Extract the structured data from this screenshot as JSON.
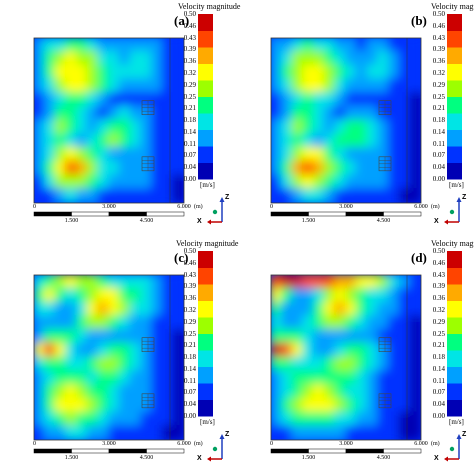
{
  "colors": {
    "colormap": [
      "#0000b4",
      "#0033ff",
      "#00a0ff",
      "#00e5e5",
      "#00ff80",
      "#9dff00",
      "#ffff00",
      "#ffaa00",
      "#ff4400",
      "#cc0000"
    ],
    "frame": "#333333",
    "axis_z": "#1f3fbf",
    "axis_x": "#c00000",
    "axis_dot": "#00a060"
  },
  "chart_data": [
    {
      "type": "heatmap",
      "panel_label": "(a)",
      "colorbar_title": "Velocity magnitude",
      "colorbar_ticks": [
        "0.50",
        "0.46",
        "0.43",
        "0.39",
        "0.36",
        "0.32",
        "0.29",
        "0.25",
        "0.21",
        "0.18",
        "0.14",
        "0.11",
        "0.07",
        "0.04",
        "0.00"
      ],
      "colorbar_unit": "[m/s]",
      "colorbar_range": [
        0,
        0.5
      ],
      "scale_bar_top": [
        "0",
        "3.000",
        "6.000",
        "(m)"
      ],
      "scale_bar_bottom": [
        "1.500",
        "4.500"
      ],
      "axis_labels": {
        "vertical": "Z",
        "horizontal": "X"
      },
      "field": {
        "rows": 12,
        "cols": 14,
        "values": [
          [
            0.12,
            0.15,
            0.18,
            0.21,
            0.2,
            0.17,
            0.14,
            0.12,
            0.1,
            0.12,
            0.14,
            0.1,
            0.08,
            0.06
          ],
          [
            0.14,
            0.2,
            0.26,
            0.3,
            0.29,
            0.25,
            0.19,
            0.15,
            0.13,
            0.15,
            0.16,
            0.11,
            0.08,
            0.06
          ],
          [
            0.13,
            0.22,
            0.3,
            0.34,
            0.33,
            0.28,
            0.22,
            0.17,
            0.15,
            0.18,
            0.17,
            0.12,
            0.08,
            0.06
          ],
          [
            0.11,
            0.18,
            0.27,
            0.32,
            0.31,
            0.26,
            0.2,
            0.15,
            0.12,
            0.13,
            0.13,
            0.1,
            0.07,
            0.05
          ],
          [
            0.08,
            0.12,
            0.17,
            0.21,
            0.2,
            0.16,
            0.11,
            0.09,
            0.07,
            0.08,
            0.09,
            0.07,
            0.06,
            0.05
          ],
          [
            0.09,
            0.14,
            0.21,
            0.24,
            0.19,
            0.13,
            0.09,
            0.12,
            0.15,
            0.13,
            0.1,
            0.08,
            0.06,
            0.05
          ],
          [
            0.12,
            0.19,
            0.27,
            0.23,
            0.16,
            0.12,
            0.16,
            0.22,
            0.24,
            0.19,
            0.14,
            0.09,
            0.06,
            0.05
          ],
          [
            0.1,
            0.16,
            0.2,
            0.17,
            0.13,
            0.16,
            0.22,
            0.25,
            0.22,
            0.16,
            0.12,
            0.08,
            0.06,
            0.05
          ],
          [
            0.1,
            0.17,
            0.26,
            0.31,
            0.28,
            0.21,
            0.16,
            0.13,
            0.12,
            0.13,
            0.12,
            0.08,
            0.06,
            0.05
          ],
          [
            0.11,
            0.21,
            0.34,
            0.4,
            0.35,
            0.26,
            0.19,
            0.15,
            0.13,
            0.14,
            0.13,
            0.09,
            0.06,
            0.05
          ],
          [
            0.09,
            0.16,
            0.25,
            0.29,
            0.26,
            0.2,
            0.15,
            0.12,
            0.1,
            0.11,
            0.1,
            0.07,
            0.05,
            0.04
          ],
          [
            0.06,
            0.09,
            0.13,
            0.15,
            0.14,
            0.11,
            0.09,
            0.08,
            0.07,
            0.07,
            0.07,
            0.06,
            0.05,
            0.04
          ]
        ]
      }
    },
    {
      "type": "heatmap",
      "panel_label": "(b)",
      "colorbar_title": "Velocity magnitude",
      "colorbar_ticks": [
        "0.50",
        "0.46",
        "0.43",
        "0.39",
        "0.36",
        "0.32",
        "0.29",
        "0.25",
        "0.21",
        "0.18",
        "0.14",
        "0.11",
        "0.07",
        "0.04",
        "0.00"
      ],
      "colorbar_unit": "[m/s]",
      "colorbar_range": [
        0,
        0.5
      ],
      "scale_bar_top": [
        "0",
        "3.000",
        "6.000",
        "(m)"
      ],
      "scale_bar_bottom": [
        "1.500",
        "4.500"
      ],
      "axis_labels": {
        "vertical": "Z",
        "horizontal": "X"
      },
      "field": {
        "rows": 12,
        "cols": 14,
        "values": [
          [
            0.1,
            0.14,
            0.17,
            0.2,
            0.19,
            0.16,
            0.13,
            0.11,
            0.09,
            0.11,
            0.13,
            0.09,
            0.07,
            0.05
          ],
          [
            0.13,
            0.19,
            0.25,
            0.29,
            0.28,
            0.24,
            0.18,
            0.14,
            0.12,
            0.14,
            0.15,
            0.1,
            0.07,
            0.05
          ],
          [
            0.12,
            0.21,
            0.29,
            0.33,
            0.32,
            0.27,
            0.21,
            0.16,
            0.14,
            0.17,
            0.16,
            0.11,
            0.07,
            0.05
          ],
          [
            0.1,
            0.17,
            0.26,
            0.31,
            0.3,
            0.25,
            0.19,
            0.14,
            0.11,
            0.12,
            0.12,
            0.09,
            0.06,
            0.05
          ],
          [
            0.07,
            0.11,
            0.16,
            0.2,
            0.19,
            0.15,
            0.1,
            0.08,
            0.06,
            0.07,
            0.08,
            0.06,
            0.05,
            0.04
          ],
          [
            0.08,
            0.13,
            0.2,
            0.23,
            0.18,
            0.12,
            0.08,
            0.11,
            0.14,
            0.12,
            0.09,
            0.07,
            0.05,
            0.04
          ],
          [
            0.11,
            0.18,
            0.26,
            0.22,
            0.15,
            0.11,
            0.15,
            0.21,
            0.23,
            0.18,
            0.13,
            0.08,
            0.05,
            0.04
          ],
          [
            0.1,
            0.16,
            0.21,
            0.18,
            0.14,
            0.16,
            0.21,
            0.24,
            0.21,
            0.15,
            0.11,
            0.07,
            0.05,
            0.04
          ],
          [
            0.1,
            0.18,
            0.28,
            0.34,
            0.31,
            0.23,
            0.17,
            0.13,
            0.12,
            0.13,
            0.12,
            0.08,
            0.05,
            0.04
          ],
          [
            0.11,
            0.22,
            0.37,
            0.44,
            0.39,
            0.28,
            0.2,
            0.15,
            0.13,
            0.14,
            0.13,
            0.09,
            0.05,
            0.04
          ],
          [
            0.09,
            0.17,
            0.27,
            0.32,
            0.28,
            0.21,
            0.15,
            0.12,
            0.1,
            0.11,
            0.1,
            0.07,
            0.05,
            0.04
          ],
          [
            0.06,
            0.09,
            0.14,
            0.16,
            0.15,
            0.12,
            0.09,
            0.08,
            0.07,
            0.07,
            0.07,
            0.06,
            0.04,
            0.04
          ]
        ]
      }
    },
    {
      "type": "heatmap",
      "panel_label": "(c)",
      "colorbar_title": "Velocity magnitude",
      "colorbar_ticks": [
        "0.50",
        "0.46",
        "0.43",
        "0.39",
        "0.36",
        "0.32",
        "0.29",
        "0.25",
        "0.21",
        "0.18",
        "0.14",
        "0.11",
        "0.07",
        "0.04",
        "0.00"
      ],
      "colorbar_unit": "[m/s]",
      "colorbar_range": [
        0,
        0.5
      ],
      "scale_bar_top": [
        "0",
        "3.000",
        "6.000",
        "(m)"
      ],
      "scale_bar_bottom": [
        "1.500",
        "4.500"
      ],
      "axis_labels": {
        "vertical": "Z",
        "horizontal": "X"
      },
      "field": {
        "rows": 12,
        "cols": 14,
        "values": [
          [
            0.18,
            0.24,
            0.28,
            0.3,
            0.29,
            0.26,
            0.22,
            0.18,
            0.16,
            0.17,
            0.18,
            0.13,
            0.09,
            0.07
          ],
          [
            0.22,
            0.3,
            0.24,
            0.16,
            0.2,
            0.28,
            0.32,
            0.3,
            0.24,
            0.2,
            0.18,
            0.12,
            0.08,
            0.06
          ],
          [
            0.16,
            0.18,
            0.12,
            0.1,
            0.18,
            0.3,
            0.36,
            0.34,
            0.26,
            0.19,
            0.16,
            0.11,
            0.07,
            0.06
          ],
          [
            0.12,
            0.13,
            0.11,
            0.12,
            0.2,
            0.26,
            0.28,
            0.24,
            0.18,
            0.13,
            0.12,
            0.09,
            0.06,
            0.05
          ],
          [
            0.14,
            0.2,
            0.24,
            0.22,
            0.16,
            0.12,
            0.11,
            0.12,
            0.14,
            0.12,
            0.1,
            0.07,
            0.05,
            0.04
          ],
          [
            0.3,
            0.42,
            0.32,
            0.18,
            0.12,
            0.13,
            0.17,
            0.21,
            0.22,
            0.18,
            0.12,
            0.08,
            0.05,
            0.04
          ],
          [
            0.16,
            0.2,
            0.22,
            0.17,
            0.15,
            0.2,
            0.25,
            0.26,
            0.22,
            0.16,
            0.11,
            0.07,
            0.05,
            0.04
          ],
          [
            0.1,
            0.18,
            0.24,
            0.24,
            0.2,
            0.19,
            0.21,
            0.22,
            0.18,
            0.14,
            0.1,
            0.07,
            0.05,
            0.04
          ],
          [
            0.12,
            0.22,
            0.28,
            0.3,
            0.28,
            0.24,
            0.2,
            0.17,
            0.14,
            0.12,
            0.1,
            0.07,
            0.05,
            0.04
          ],
          [
            0.14,
            0.24,
            0.3,
            0.34,
            0.32,
            0.27,
            0.21,
            0.17,
            0.14,
            0.12,
            0.1,
            0.07,
            0.05,
            0.04
          ],
          [
            0.12,
            0.18,
            0.24,
            0.26,
            0.24,
            0.21,
            0.17,
            0.14,
            0.12,
            0.1,
            0.09,
            0.06,
            0.05,
            0.04
          ],
          [
            0.08,
            0.11,
            0.14,
            0.16,
            0.15,
            0.13,
            0.11,
            0.09,
            0.08,
            0.07,
            0.06,
            0.05,
            0.04,
            0.04
          ]
        ]
      }
    },
    {
      "type": "heatmap",
      "panel_label": "(d)",
      "colorbar_title": "Velocity magnitude",
      "colorbar_ticks": [
        "0.50",
        "0.46",
        "0.43",
        "0.39",
        "0.36",
        "0.32",
        "0.29",
        "0.25",
        "0.21",
        "0.18",
        "0.14",
        "0.11",
        "0.07",
        "0.04",
        "0.00"
      ],
      "colorbar_unit": "[m/s]",
      "colorbar_range": [
        0,
        0.5
      ],
      "scale_bar_top": [
        "0",
        "3.000",
        "6.000",
        "(m)"
      ],
      "scale_bar_bottom": [
        "1.500",
        "4.500"
      ],
      "axis_labels": {
        "vertical": "Z",
        "horizontal": "X"
      },
      "field": {
        "rows": 12,
        "cols": 14,
        "values": [
          [
            0.44,
            0.46,
            0.45,
            0.43,
            0.42,
            0.4,
            0.38,
            0.36,
            0.34,
            0.3,
            0.26,
            0.18,
            0.11,
            0.07
          ],
          [
            0.3,
            0.2,
            0.14,
            0.12,
            0.18,
            0.26,
            0.3,
            0.28,
            0.22,
            0.18,
            0.16,
            0.11,
            0.07,
            0.05
          ],
          [
            0.22,
            0.12,
            0.1,
            0.14,
            0.24,
            0.32,
            0.36,
            0.32,
            0.24,
            0.17,
            0.14,
            0.1,
            0.06,
            0.05
          ],
          [
            0.18,
            0.11,
            0.12,
            0.18,
            0.24,
            0.28,
            0.28,
            0.23,
            0.17,
            0.12,
            0.1,
            0.08,
            0.05,
            0.04
          ],
          [
            0.22,
            0.24,
            0.22,
            0.18,
            0.14,
            0.12,
            0.11,
            0.12,
            0.13,
            0.11,
            0.09,
            0.06,
            0.05,
            0.04
          ],
          [
            0.46,
            0.44,
            0.3,
            0.18,
            0.12,
            0.13,
            0.18,
            0.22,
            0.21,
            0.16,
            0.11,
            0.07,
            0.05,
            0.04
          ],
          [
            0.24,
            0.2,
            0.18,
            0.15,
            0.16,
            0.21,
            0.26,
            0.25,
            0.2,
            0.15,
            0.1,
            0.07,
            0.05,
            0.04
          ],
          [
            0.14,
            0.16,
            0.2,
            0.22,
            0.22,
            0.22,
            0.22,
            0.2,
            0.17,
            0.13,
            0.09,
            0.06,
            0.05,
            0.04
          ],
          [
            0.12,
            0.18,
            0.24,
            0.28,
            0.3,
            0.28,
            0.24,
            0.19,
            0.15,
            0.12,
            0.09,
            0.06,
            0.05,
            0.04
          ],
          [
            0.12,
            0.2,
            0.26,
            0.31,
            0.33,
            0.3,
            0.25,
            0.2,
            0.15,
            0.12,
            0.09,
            0.06,
            0.05,
            0.04
          ],
          [
            0.1,
            0.16,
            0.21,
            0.24,
            0.24,
            0.22,
            0.19,
            0.16,
            0.12,
            0.1,
            0.08,
            0.06,
            0.04,
            0.04
          ],
          [
            0.06,
            0.08,
            0.11,
            0.12,
            0.12,
            0.11,
            0.1,
            0.09,
            0.08,
            0.07,
            0.06,
            0.05,
            0.04,
            0.04
          ]
        ]
      }
    }
  ]
}
